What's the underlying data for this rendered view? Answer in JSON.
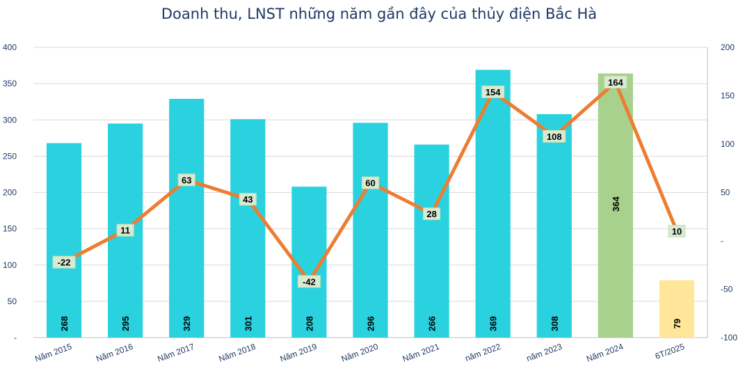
{
  "chart_data": {
    "type": "bar+line",
    "title": "Doanh thu, LNST những năm gần đây của thủy điện Bắc Hà",
    "categories": [
      "Năm 2015",
      "Năm 2016",
      "Năm 2017",
      "Năm 2018",
      "Năm 2019",
      "Năm 2020",
      "Năm 2021",
      "năm 2022",
      "năm 2023",
      "Năm 2024",
      "6T/2025"
    ],
    "series": [
      {
        "name": "Doanh thu",
        "type": "bar",
        "axis": "left",
        "values": [
          268,
          295,
          329,
          301,
          208,
          296,
          266,
          369,
          308,
          364,
          79
        ],
        "colors": [
          "#29d2de",
          "#29d2de",
          "#29d2de",
          "#29d2de",
          "#29d2de",
          "#29d2de",
          "#29d2de",
          "#29d2de",
          "#29d2de",
          "#a9d18e",
          "#ffe699"
        ]
      },
      {
        "name": "LNST",
        "type": "line",
        "axis": "right",
        "values": [
          -22,
          11,
          63,
          43,
          -42,
          60,
          28,
          154,
          108,
          164,
          10
        ],
        "color": "#ed7d31"
      }
    ],
    "left_axis": {
      "min": 0,
      "max": 400,
      "step": 50,
      "tick_labels": [
        "-",
        "50",
        "100",
        "150",
        "200",
        "250",
        "300",
        "350",
        "400"
      ]
    },
    "right_axis": {
      "min": -100,
      "max": 200,
      "step": 50,
      "tick_labels": [
        "-100",
        "-50",
        "-",
        "50",
        "100",
        "150",
        "200"
      ]
    },
    "grid": true
  }
}
